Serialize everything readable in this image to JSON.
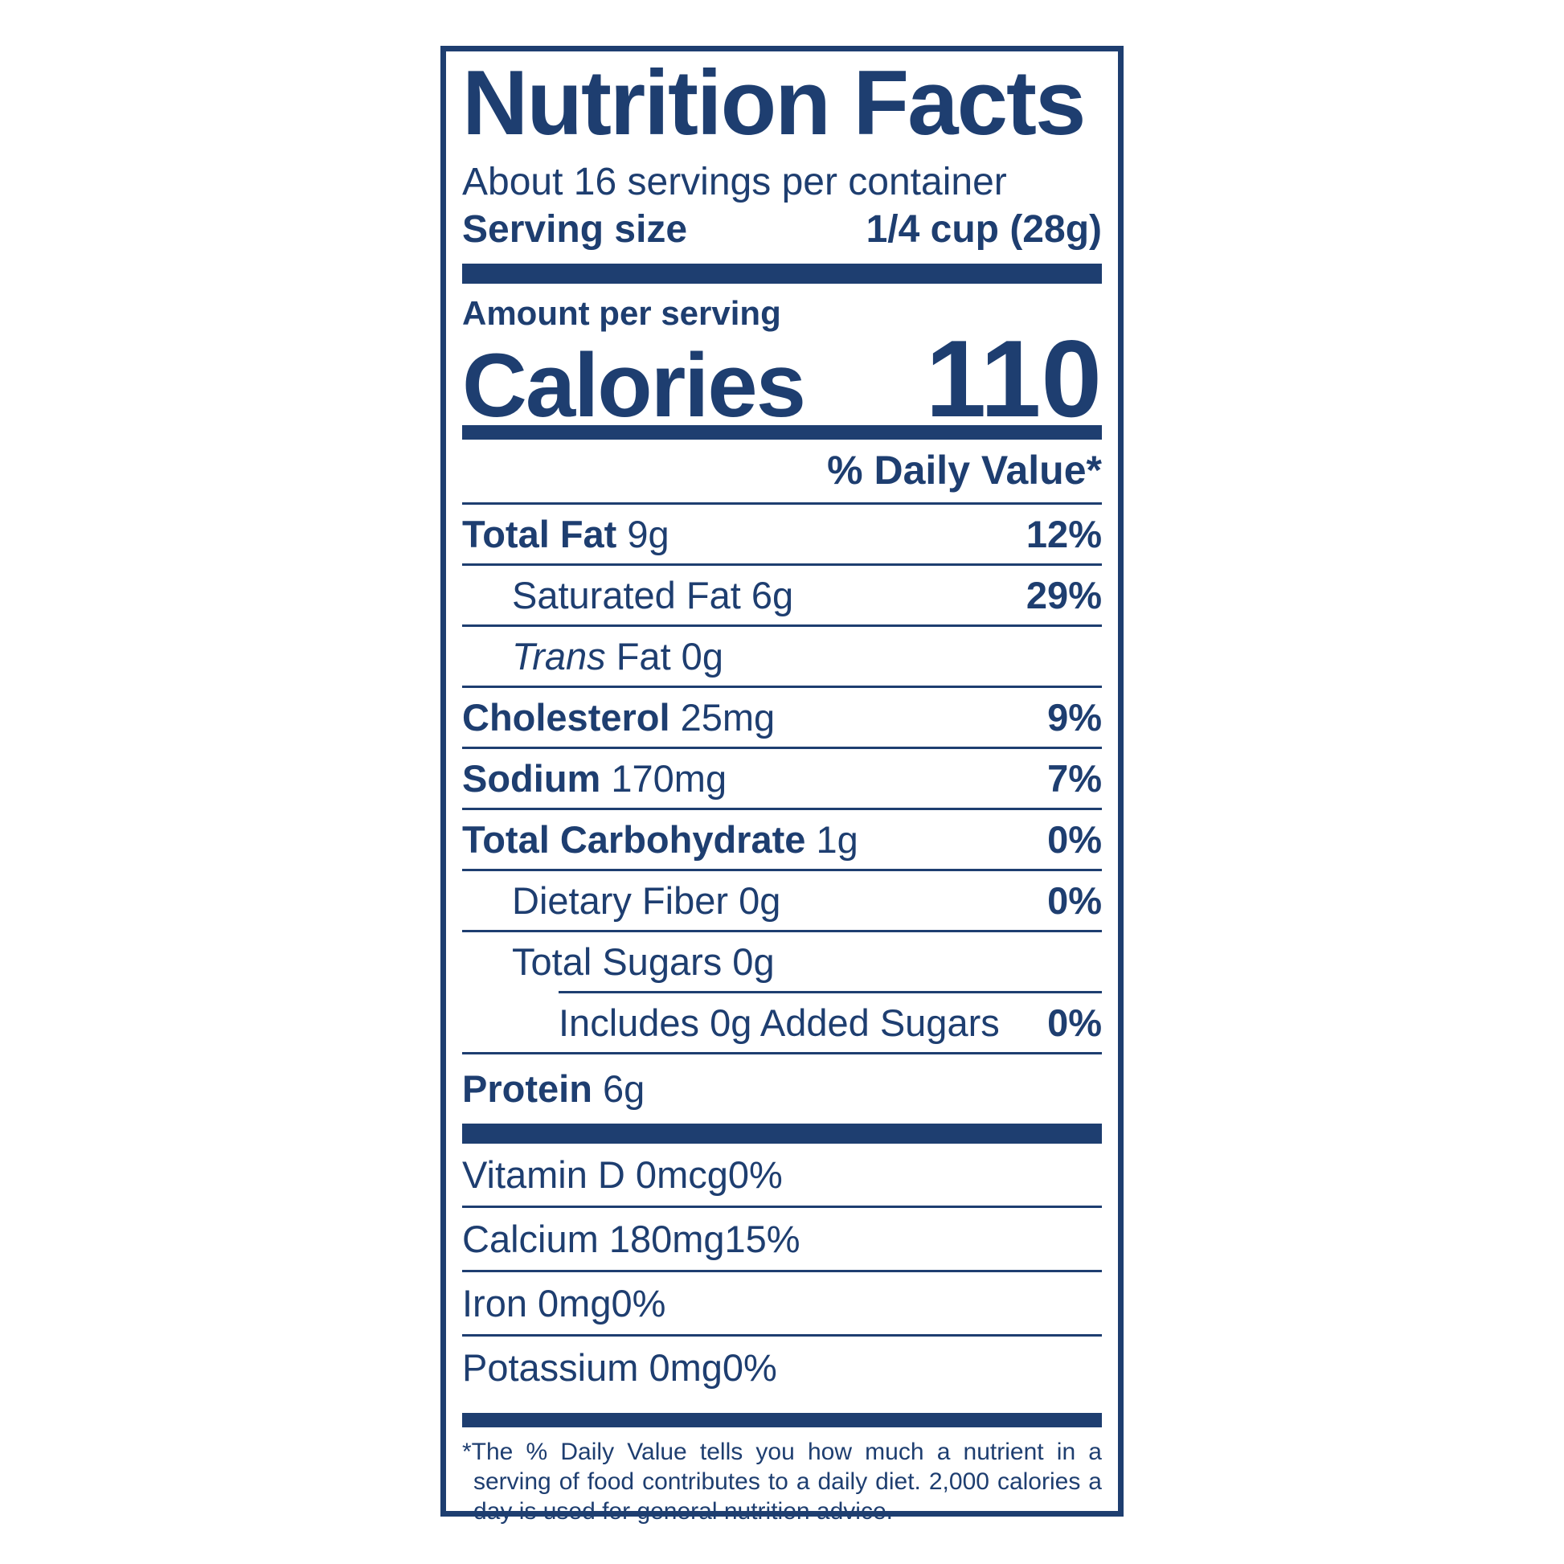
{
  "colors": {
    "navy": "#1e3e70",
    "background": "#ffffff"
  },
  "label": {
    "title": "Nutrition Facts",
    "servings_per_container": "About 16 servings per container",
    "serving_size_label": "Serving size",
    "serving_size_value": "1/4 cup (28g)",
    "amount_per_serving": "Amount per serving",
    "calories_label": "Calories",
    "calories_value": "110",
    "daily_value_header": "% Daily Value*",
    "nutrients": [
      {
        "parts": [
          {
            "text": "Total Fat",
            "bold": true
          },
          {
            "text": " 9g"
          }
        ],
        "dv": "12%",
        "dv_bold": true,
        "indent": 0,
        "rule": "none"
      },
      {
        "parts": [
          {
            "text": "Saturated Fat 6g"
          }
        ],
        "dv": "29%",
        "dv_bold": true,
        "indent": 1,
        "rule": "full"
      },
      {
        "parts": [
          {
            "text": "Trans",
            "italic": true
          },
          {
            "text": " Fat 0g"
          }
        ],
        "dv": "",
        "dv_bold": false,
        "indent": 1,
        "rule": "full"
      },
      {
        "parts": [
          {
            "text": "Cholesterol",
            "bold": true
          },
          {
            "text": " 25mg"
          }
        ],
        "dv": "9%",
        "dv_bold": true,
        "indent": 0,
        "rule": "full"
      },
      {
        "parts": [
          {
            "text": "Sodium",
            "bold": true
          },
          {
            "text": " 170mg"
          }
        ],
        "dv": "7%",
        "dv_bold": true,
        "indent": 0,
        "rule": "full"
      },
      {
        "parts": [
          {
            "text": "Total Carbohydrate",
            "bold": true
          },
          {
            "text": " 1g"
          }
        ],
        "dv": "0%",
        "dv_bold": true,
        "indent": 0,
        "rule": "full"
      },
      {
        "parts": [
          {
            "text": "Dietary Fiber 0g"
          }
        ],
        "dv": "0%",
        "dv_bold": true,
        "indent": 1,
        "rule": "full"
      },
      {
        "parts": [
          {
            "text": "Total Sugars 0g"
          }
        ],
        "dv": "",
        "dv_bold": false,
        "indent": 1,
        "rule": "full"
      },
      {
        "parts": [
          {
            "text": "Includes 0g Added Sugars"
          }
        ],
        "dv": "0%",
        "dv_bold": true,
        "indent": 2,
        "rule": "indented"
      },
      {
        "parts": [
          {
            "text": "Protein",
            "bold": true
          },
          {
            "text": " 6g"
          }
        ],
        "dv": "",
        "dv_bold": false,
        "indent": 0,
        "rule": "full",
        "tall": true
      }
    ],
    "vitamins": [
      {
        "name": "Vitamin D 0mcg",
        "dv": "0%",
        "rule": "none"
      },
      {
        "name": "Calcium 180mg",
        "dv": "15%",
        "rule": "full"
      },
      {
        "name": "Iron 0mg",
        "dv": "0%",
        "rule": "full"
      },
      {
        "name": "Potassium 0mg",
        "dv": "0%",
        "rule": "full"
      }
    ],
    "footnote": "*The % Daily Value tells you how much a nutrient in a serving of food contributes to a daily diet. 2,000 calories a day is used for general nutrition advice."
  }
}
